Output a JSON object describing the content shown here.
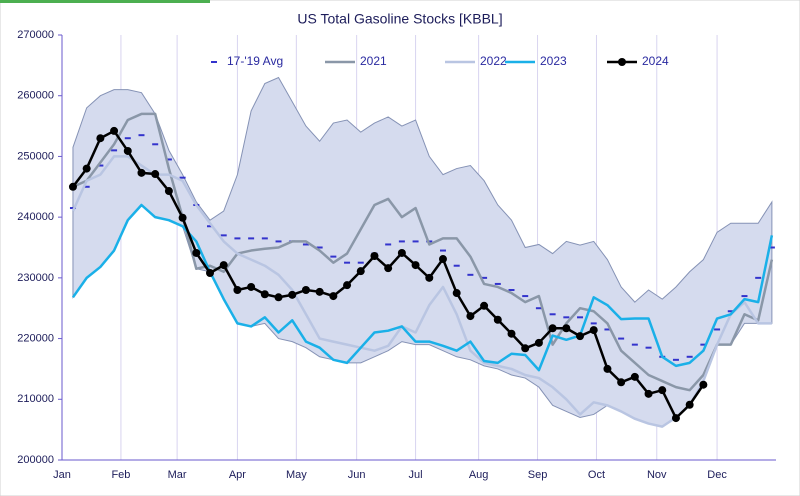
{
  "chart_data": {
    "type": "line",
    "title": "US Total Gasoline Stocks [KBBL]",
    "x": [
      1,
      2,
      3,
      4,
      5,
      6,
      7,
      8,
      9,
      10,
      11,
      12,
      13,
      14,
      15,
      16,
      17,
      18,
      19,
      20,
      21,
      22,
      23,
      24,
      25,
      26,
      27,
      28,
      29,
      30,
      31,
      32,
      33,
      34,
      35,
      36,
      37,
      38,
      39,
      40,
      41,
      42,
      43,
      44,
      45,
      46,
      47,
      48,
      49,
      50,
      51,
      52
    ],
    "xlim": [
      0.2,
      52.3
    ],
    "xticks": [
      {
        "value": 0.2,
        "label": "Jan"
      },
      {
        "value": 4.5,
        "label": "Feb"
      },
      {
        "value": 8.6,
        "label": "Mar"
      },
      {
        "value": 13.0,
        "label": "Apr"
      },
      {
        "value": 17.3,
        "label": "May"
      },
      {
        "value": 21.7,
        "label": "Jun"
      },
      {
        "value": 26.0,
        "label": "Jul"
      },
      {
        "value": 30.6,
        "label": "Aug"
      },
      {
        "value": 34.9,
        "label": "Sep"
      },
      {
        "value": 39.2,
        "label": "Oct"
      },
      {
        "value": 43.6,
        "label": "Nov"
      },
      {
        "value": 48.0,
        "label": "Dec"
      }
    ],
    "ylim": [
      200000,
      270000
    ],
    "yticks": [
      200000,
      210000,
      220000,
      230000,
      240000,
      250000,
      260000,
      270000
    ],
    "grid": true,
    "range": {
      "color": "#d5dbee",
      "high": [
        251500,
        258000,
        260000,
        261000,
        261000,
        260500,
        257000,
        251000,
        247000,
        242500,
        239500,
        241000,
        247000,
        257500,
        262000,
        263000,
        259000,
        255000,
        252500,
        255500,
        256000,
        254000,
        255500,
        256500,
        255000,
        256000,
        250000,
        247000,
        248000,
        248500,
        246000,
        242000,
        239500,
        235000,
        235500,
        234000,
        236000,
        235400,
        236000,
        233000,
        228500,
        226000,
        228000,
        226500,
        228500,
        231000,
        233000,
        237500,
        239000,
        239000,
        239000,
        242500
      ],
      "low": [
        226800,
        230000,
        231800,
        234500,
        239500,
        242000,
        240000,
        239500,
        238500,
        231500,
        231000,
        226500,
        222500,
        222000,
        222500,
        220000,
        219500,
        218500,
        217000,
        216500,
        216000,
        216000,
        217000,
        218000,
        219500,
        219000,
        219000,
        218000,
        217000,
        216500,
        215500,
        215000,
        214000,
        213500,
        212000,
        209000,
        208000,
        207000,
        207500,
        209000,
        208000,
        206800,
        206000,
        205500,
        207000,
        209000,
        213000,
        219000,
        219000,
        222500,
        222500,
        222500
      ]
    },
    "series": [
      {
        "name": "17-'19 Avg",
        "color": "#3333cc",
        "style": "dash",
        "values": [
          241500,
          245000,
          248500,
          251000,
          253000,
          253500,
          252000,
          249500,
          246500,
          242000,
          238500,
          237000,
          236500,
          236500,
          236500,
          236000,
          236000,
          235500,
          235000,
          233500,
          232500,
          232500,
          234000,
          235500,
          236000,
          236000,
          236000,
          234500,
          232000,
          230500,
          230000,
          229000,
          228000,
          227000,
          225000,
          224000,
          223500,
          223500,
          222500,
          221500,
          220000,
          219000,
          218500,
          217000,
          216500,
          217000,
          219000,
          221500,
          224500,
          227000,
          230000,
          235000
        ]
      },
      {
        "name": "2021",
        "color": "#8a97a8",
        "style": "line",
        "values": [
          245000,
          246000,
          249000,
          252000,
          256000,
          257000,
          257000,
          248000,
          240000,
          231500,
          232000,
          231000,
          234000,
          234500,
          234800,
          235000,
          236000,
          236000,
          234500,
          232500,
          234000,
          238000,
          242000,
          243000,
          240000,
          241500,
          235500,
          236500,
          236500,
          233500,
          229000,
          228500,
          227500,
          226000,
          227000,
          219000,
          222500,
          225000,
          224500,
          222500,
          218000,
          216000,
          214000,
          213000,
          212000,
          211500,
          214000,
          219000,
          219000,
          224000,
          223000,
          233000
        ]
      },
      {
        "name": "2022",
        "color": "#b9c5e2",
        "style": "line",
        "values": [
          241000,
          246000,
          247000,
          250000,
          250000,
          248500,
          247000,
          247000,
          246000,
          242000,
          239000,
          236000,
          234000,
          233000,
          232000,
          230500,
          228000,
          224000,
          220000,
          219500,
          219000,
          218500,
          218000,
          218800,
          222000,
          221000,
          225500,
          228500,
          224000,
          218000,
          216000,
          215500,
          215000,
          214000,
          213500,
          212000,
          210000,
          207500,
          209500,
          209000,
          208000,
          206800,
          206000,
          205500,
          207000,
          209000,
          213000,
          219000,
          224000,
          226000,
          222500,
          222500
        ]
      },
      {
        "name": "2023",
        "color": "#1ab0e8",
        "style": "line",
        "values": [
          226800,
          230000,
          231800,
          234500,
          239500,
          242000,
          240000,
          239500,
          238500,
          236000,
          231000,
          226500,
          222500,
          222000,
          223500,
          221000,
          223000,
          219500,
          218500,
          216500,
          216000,
          218500,
          221000,
          221300,
          222000,
          219500,
          219500,
          218800,
          218000,
          219500,
          216300,
          216000,
          217500,
          217300,
          214800,
          220500,
          219800,
          220500,
          226800,
          225500,
          223200,
          223300,
          223300,
          217000,
          215500,
          216000,
          218000,
          223300,
          224000,
          226500,
          226000,
          237000
        ]
      },
      {
        "name": "2024",
        "color": "#000000",
        "style": "marker",
        "values": [
          245000,
          248000,
          253000,
          254200,
          250900,
          247300,
          247100,
          244300,
          239900,
          234100,
          230800,
          232100,
          228000,
          228500,
          227300,
          226800,
          227200,
          228000,
          227700,
          227000,
          228800,
          231100,
          233600,
          231600,
          234100,
          232100,
          230000,
          233100,
          227500,
          223700,
          225400,
          223100,
          220800,
          218400,
          219300,
          221700,
          221700,
          220400,
          221400,
          215000,
          212800,
          213700,
          210900,
          211500,
          206900,
          209100,
          212400,
          null,
          null,
          null,
          null,
          null
        ]
      }
    ]
  }
}
